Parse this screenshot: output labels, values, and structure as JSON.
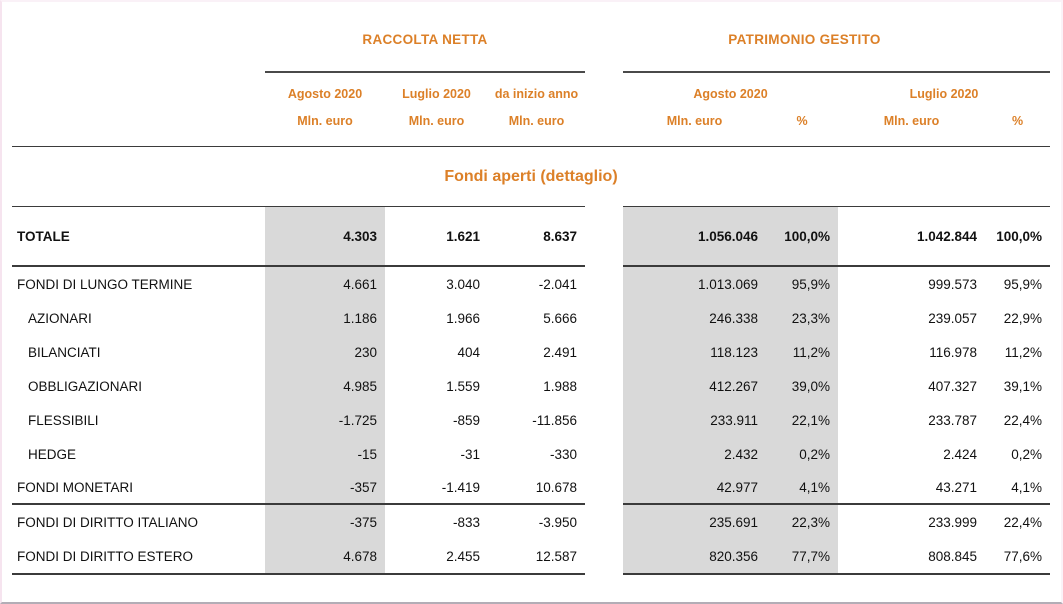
{
  "header": {
    "left_group_title": "RACCOLTA NETTA",
    "right_group_title": "PATRIMONIO GESTITO",
    "rn_columns": [
      {
        "period": "Agosto 2020",
        "unit": "Mln. euro"
      },
      {
        "period": "Luglio 2020",
        "unit": "Mln. euro"
      },
      {
        "period": "da inizio anno",
        "unit": "Mln. euro"
      }
    ],
    "pg_columns": [
      {
        "period": "Agosto 2020",
        "unit": "Mln. euro",
        "pct": "%"
      },
      {
        "period": "Luglio 2020",
        "unit": "Mln. euro",
        "pct": "%"
      }
    ]
  },
  "section_title": "Fondi aperti (dettaglio)",
  "table": {
    "rows": [
      {
        "label": "TOTALE",
        "type": "total",
        "rule_below": true,
        "rn": [
          "4.303",
          "1.621",
          "8.637"
        ],
        "pg": [
          "1.056.046",
          "100,0%",
          "1.042.844",
          "100,0%"
        ]
      },
      {
        "label": "FONDI DI LUNGO TERMINE",
        "type": "group",
        "rn": [
          "4.661",
          "3.040",
          "-2.041"
        ],
        "pg": [
          "1.013.069",
          "95,9%",
          "999.573",
          "95,9%"
        ]
      },
      {
        "label": "AZIONARI",
        "type": "sub",
        "rn": [
          "1.186",
          "1.966",
          "5.666"
        ],
        "pg": [
          "246.338",
          "23,3%",
          "239.057",
          "22,9%"
        ]
      },
      {
        "label": "BILANCIATI",
        "type": "sub",
        "rn": [
          "230",
          "404",
          "2.491"
        ],
        "pg": [
          "118.123",
          "11,2%",
          "116.978",
          "11,2%"
        ]
      },
      {
        "label": "OBBLIGAZIONARI",
        "type": "sub",
        "rn": [
          "4.985",
          "1.559",
          "1.988"
        ],
        "pg": [
          "412.267",
          "39,0%",
          "407.327",
          "39,1%"
        ]
      },
      {
        "label": "FLESSIBILI",
        "type": "sub",
        "rn": [
          "-1.725",
          "-859",
          "-11.856"
        ],
        "pg": [
          "233.911",
          "22,1%",
          "233.787",
          "22,4%"
        ]
      },
      {
        "label": "HEDGE",
        "type": "sub",
        "rn": [
          "-15",
          "-31",
          "-330"
        ],
        "pg": [
          "2.432",
          "0,2%",
          "2.424",
          "0,2%"
        ]
      },
      {
        "label": "FONDI MONETARI",
        "type": "group",
        "rule_below": true,
        "rn": [
          "-357",
          "-1.419",
          "10.678"
        ],
        "pg": [
          "42.977",
          "4,1%",
          "43.271",
          "4,1%"
        ]
      },
      {
        "label": "FONDI DI DIRITTO ITALIANO",
        "type": "group",
        "tall": true,
        "rn": [
          "-375",
          "-833",
          "-3.950"
        ],
        "pg": [
          "235.691",
          "22,3%",
          "233.999",
          "22,4%"
        ]
      },
      {
        "label": "FONDI DI DIRITTO ESTERO",
        "type": "group",
        "tall": true,
        "rule_below": true,
        "rn": [
          "4.678",
          "2.455",
          "12.587"
        ],
        "pg": [
          "820.356",
          "77,7%",
          "808.845",
          "77,6%"
        ]
      }
    ]
  },
  "colors": {
    "accent_orange": "#DC8028",
    "band_gray": "#D9D9D9",
    "rule_dark": "#3B3B3B",
    "rule_mid": "#4A4A4A"
  }
}
